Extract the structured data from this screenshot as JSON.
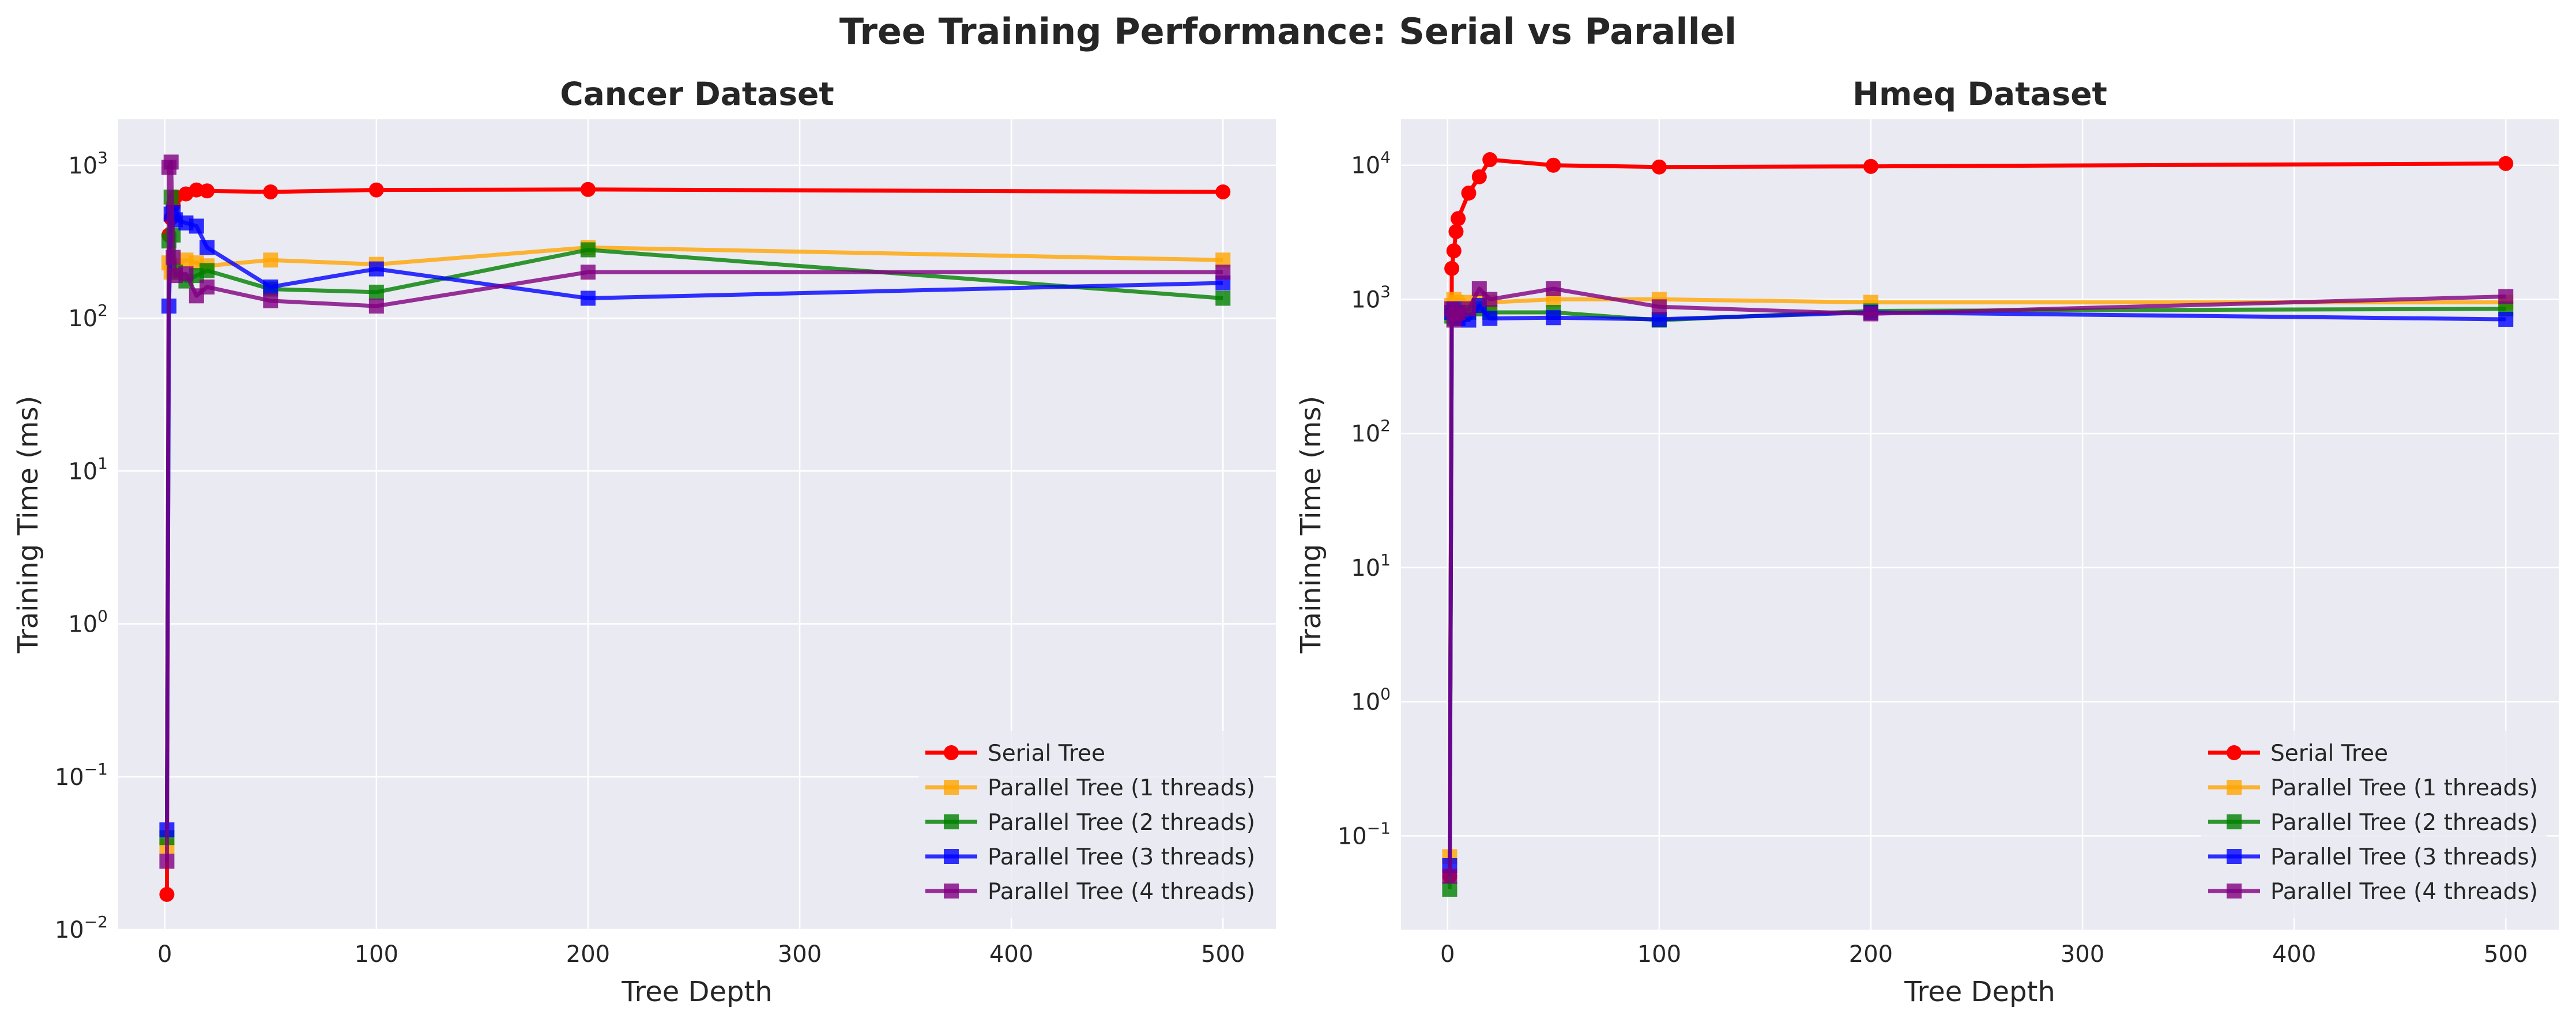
{
  "figure": {
    "suptitle": "Tree Training Performance: Serial vs Parallel"
  },
  "series_styles": [
    {
      "name": "Serial Tree",
      "color": "#ff0000",
      "marker": "circle"
    },
    {
      "name": "Parallel Tree (1 threads)",
      "color": "#ffa500",
      "marker": "square"
    },
    {
      "name": "Parallel Tree (2 threads)",
      "color": "#008000",
      "marker": "square"
    },
    {
      "name": "Parallel Tree (3 threads)",
      "color": "#0000ff",
      "marker": "square"
    },
    {
      "name": "Parallel Tree (4 threads)",
      "color": "#800080",
      "marker": "square"
    }
  ],
  "chart_data": [
    {
      "type": "line",
      "title": "Cancer Dataset",
      "xlabel": "Tree Depth",
      "ylabel": "Training Time (ms)",
      "yscale": "log",
      "xlim": [
        -22,
        525
      ],
      "ylim": [
        0.01,
        2000
      ],
      "xticks": [
        0,
        100,
        200,
        300,
        400,
        500
      ],
      "yticks": [
        0.01,
        0.1,
        1,
        10,
        100,
        1000
      ],
      "grid": true,
      "legend_position": "lower right",
      "series": [
        {
          "name": "Serial Tree",
          "x": [
            1,
            2,
            3,
            4,
            5,
            10,
            15,
            20,
            50,
            100,
            200,
            500
          ],
          "y": [
            0.017,
            350,
            450,
            550,
            620,
            650,
            690,
            680,
            670,
            690,
            695,
            670
          ]
        },
        {
          "name": "Parallel Tree (1 threads)",
          "x": [
            1,
            2,
            3,
            4,
            5,
            10,
            15,
            20,
            50,
            100,
            200,
            500
          ],
          "y": [
            0.035,
            230,
            200,
            210,
            220,
            240,
            230,
            220,
            240,
            225,
            290,
            240
          ]
        },
        {
          "name": "Parallel Tree (2 threads)",
          "x": [
            1,
            2,
            3,
            4,
            5,
            10,
            15,
            20,
            50,
            100,
            200,
            500
          ],
          "y": [
            0.04,
            320,
            620,
            350,
            200,
            175,
            190,
            205,
            155,
            148,
            280,
            135
          ]
        },
        {
          "name": "Parallel Tree (3 threads)",
          "x": [
            1,
            2,
            3,
            4,
            5,
            10,
            15,
            20,
            50,
            100,
            200,
            500
          ],
          "y": [
            0.045,
            120,
            480,
            490,
            440,
            420,
            400,
            290,
            160,
            210,
            135,
            170
          ]
        },
        {
          "name": "Parallel Tree (4 threads)",
          "x": [
            1,
            2,
            3,
            4,
            5,
            10,
            15,
            20,
            50,
            100,
            200,
            500
          ],
          "y": [
            0.028,
            970,
            1050,
            250,
            190,
            195,
            140,
            160,
            130,
            120,
            200,
            200
          ]
        }
      ]
    },
    {
      "type": "line",
      "title": "Hmeq Dataset",
      "xlabel": "Tree Depth",
      "ylabel": "Training Time (ms)",
      "yscale": "log",
      "xlim": [
        -22,
        525
      ],
      "ylim": [
        0.02,
        22000
      ],
      "xticks": [
        0,
        100,
        200,
        300,
        400,
        500
      ],
      "yticks": [
        0.1,
        1,
        10,
        100,
        1000,
        10000
      ],
      "grid": true,
      "legend_position": "lower right",
      "series": [
        {
          "name": "Serial Tree",
          "x": [
            1,
            2,
            3,
            4,
            5,
            10,
            15,
            20,
            50,
            100,
            200,
            500
          ],
          "y": [
            0.05,
            1700,
            2300,
            3200,
            4000,
            6200,
            8200,
            11000,
            10000,
            9700,
            9800,
            10300
          ]
        },
        {
          "name": "Parallel Tree (1 threads)",
          "x": [
            1,
            2,
            3,
            4,
            5,
            10,
            15,
            20,
            50,
            100,
            200,
            500
          ],
          "y": [
            0.07,
            900,
            1000,
            950,
            900,
            950,
            1000,
            950,
            1000,
            1000,
            950,
            950
          ]
        },
        {
          "name": "Parallel Tree (2 threads)",
          "x": [
            1,
            2,
            3,
            4,
            5,
            10,
            15,
            20,
            50,
            100,
            200,
            500
          ],
          "y": [
            0.04,
            750,
            720,
            800,
            800,
            800,
            850,
            800,
            800,
            700,
            820,
            850
          ]
        },
        {
          "name": "Parallel Tree (3 threads)",
          "x": [
            1,
            2,
            3,
            4,
            5,
            10,
            15,
            20,
            50,
            100,
            200,
            500
          ],
          "y": [
            0.06,
            800,
            850,
            760,
            720,
            700,
            900,
            720,
            730,
            710,
            800,
            710
          ]
        },
        {
          "name": "Parallel Tree (4 threads)",
          "x": [
            1,
            2,
            3,
            4,
            5,
            10,
            15,
            20,
            50,
            100,
            200,
            500
          ],
          "y": [
            0.05,
            850,
            700,
            780,
            800,
            850,
            1200,
            1000,
            1200,
            880,
            780,
            1050
          ]
        }
      ]
    }
  ]
}
